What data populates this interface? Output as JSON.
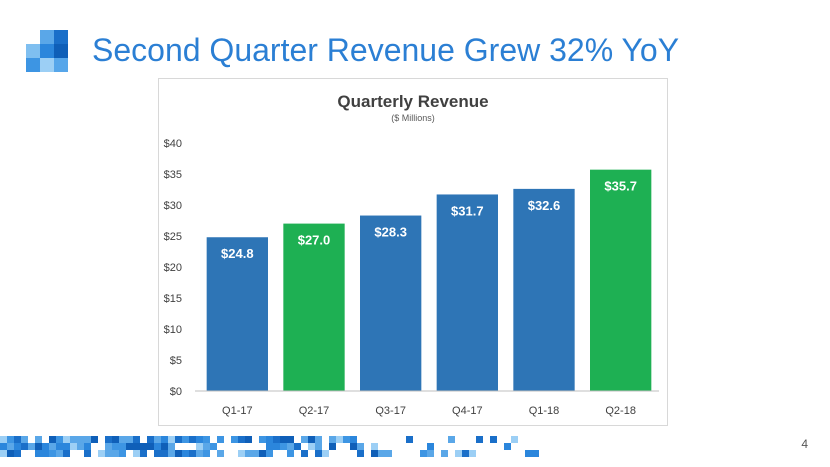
{
  "slide": {
    "title": "Second Quarter Revenue Grew 32% YoY",
    "page_number": "4"
  },
  "colors": {
    "title": "#2b7fd4",
    "bar_blue": "#2e75b6",
    "bar_green": "#1eb053",
    "axis_text": "#404040"
  },
  "chart_data": {
    "type": "bar",
    "title": "Quarterly Revenue",
    "subtitle": "($ Millions)",
    "categories": [
      "Q1-17",
      "Q2-17",
      "Q3-17",
      "Q4-17",
      "Q1-18",
      "Q2-18"
    ],
    "values": [
      24.8,
      27.0,
      28.3,
      31.7,
      32.6,
      35.7
    ],
    "data_labels": [
      "$24.8",
      "$27.0",
      "$28.3",
      "$31.7",
      "$32.6",
      "$35.7"
    ],
    "bar_colors": [
      "blue",
      "green",
      "blue",
      "blue",
      "blue",
      "green"
    ],
    "y_ticks": [
      0,
      5,
      10,
      15,
      20,
      25,
      30,
      35,
      40
    ],
    "y_tick_labels": [
      "$0",
      "$5",
      "$10",
      "$15",
      "$20",
      "$25",
      "$30",
      "$35",
      "$40"
    ],
    "ylim": [
      0,
      40
    ],
    "xlabel": "",
    "ylabel": "",
    "grid": false
  }
}
